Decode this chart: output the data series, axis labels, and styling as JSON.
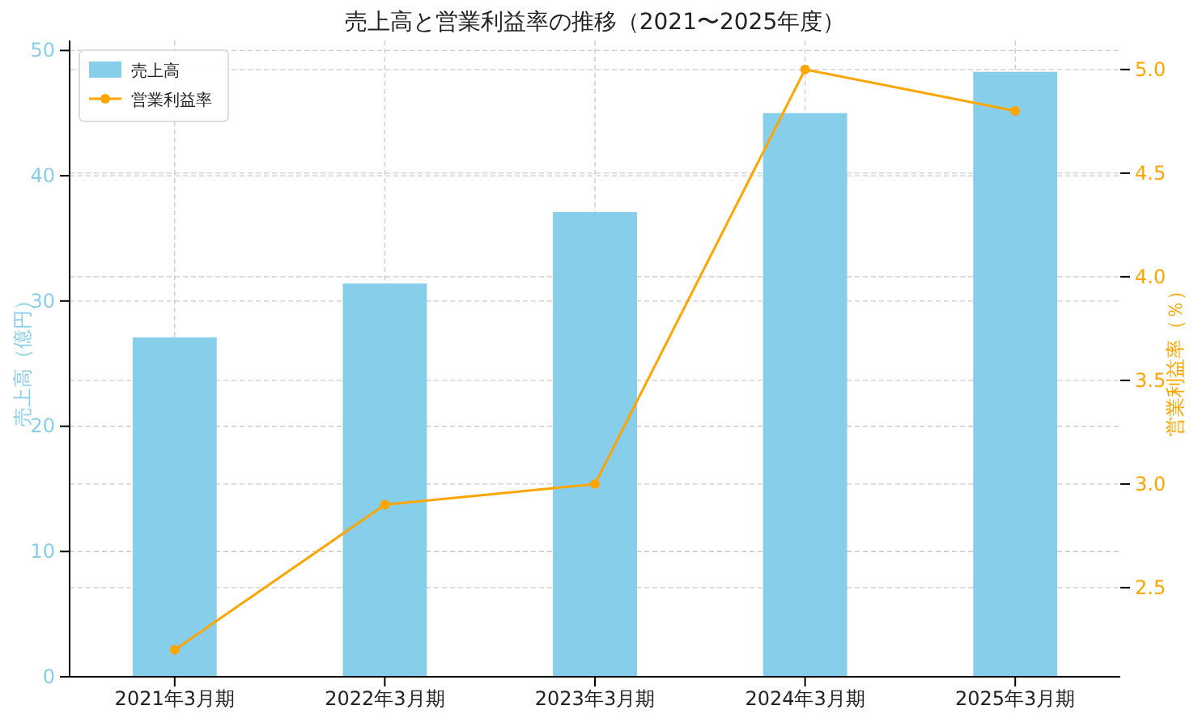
{
  "chart_data": {
    "type": "bar",
    "title": "売上高と営業利益率の推移（2021〜2025年度）",
    "categories": [
      "2021年3月期",
      "2022年3月期",
      "2023年3月期",
      "2024年3月期",
      "2025年3月期"
    ],
    "series": [
      {
        "name": "売上高",
        "color": "#87ceeb",
        "values": [
          27.1,
          31.4,
          37.1,
          45.0,
          48.3
        ]
      },
      {
        "name": "営業利益率",
        "type": "line",
        "axis": "y2",
        "color": "#ffa500",
        "values": [
          2.2,
          2.9,
          3.0,
          5.0,
          4.8
        ]
      }
    ],
    "ylabel": "売上高（億円）",
    "y2label": "営業利益率（％）",
    "ylim": [
      0,
      50.8
    ],
    "yticks": [
      0,
      10,
      20,
      30,
      40,
      50
    ],
    "y2lim": [
      2.07,
      5.14
    ],
    "y2ticks": [
      2.5,
      {
        "value": 3,
        "label": "3.0"
      },
      3.5,
      {
        "value": 4,
        "label": "4.0"
      },
      4.5,
      {
        "value": 5,
        "label": "5.0"
      }
    ],
    "grid": true,
    "legend": "top left",
    "marker": "circle",
    "line_style": "solid"
  }
}
